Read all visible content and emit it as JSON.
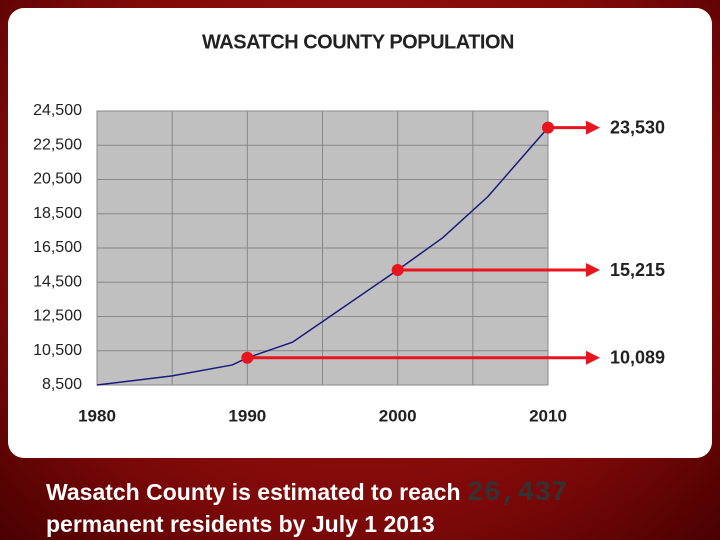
{
  "chart_data": {
    "type": "line",
    "title": "WASATCH COUNTY POPULATION",
    "x": [
      1980,
      1985,
      1989,
      1990,
      1993,
      1995,
      2000,
      2003,
      2006,
      2010
    ],
    "series": [
      {
        "name": "Population",
        "color": "#1a1a7a",
        "values": [
          8500,
          9030,
          9670,
          10089,
          11000,
          12200,
          15215,
          17100,
          19500,
          23530
        ]
      }
    ],
    "xlim": [
      1980,
      2010
    ],
    "xticks": [
      1980,
      1990,
      2000,
      2010
    ],
    "ylim": [
      8500,
      24500
    ],
    "yticks": [
      {
        "value": 8500,
        "label": "8,500"
      },
      {
        "value": 10500,
        "label": "10,500"
      },
      {
        "value": 12500,
        "label": "12,500"
      },
      {
        "value": 14500,
        "label": "14,500"
      },
      {
        "value": 16500,
        "label": "16,500"
      },
      {
        "value": 18500,
        "label": "18,500"
      },
      {
        "value": 20500,
        "label": "20,500"
      },
      {
        "value": 22500,
        "label": "22,500"
      },
      {
        "value": 24500,
        "label": "24,500"
      }
    ],
    "grid": true,
    "highlights": [
      {
        "x": 1990,
        "value": 10089,
        "label": "10,089"
      },
      {
        "x": 2000,
        "value": 15215,
        "label": "15,215"
      },
      {
        "x": 2010,
        "value": 23530,
        "label": "23,530"
      }
    ],
    "highlight_color": "#e8141e"
  },
  "caption": {
    "before": "Wasatch County is estimated to reach",
    "number": "26,437",
    "after": "permanent residents by July 1 2013"
  }
}
